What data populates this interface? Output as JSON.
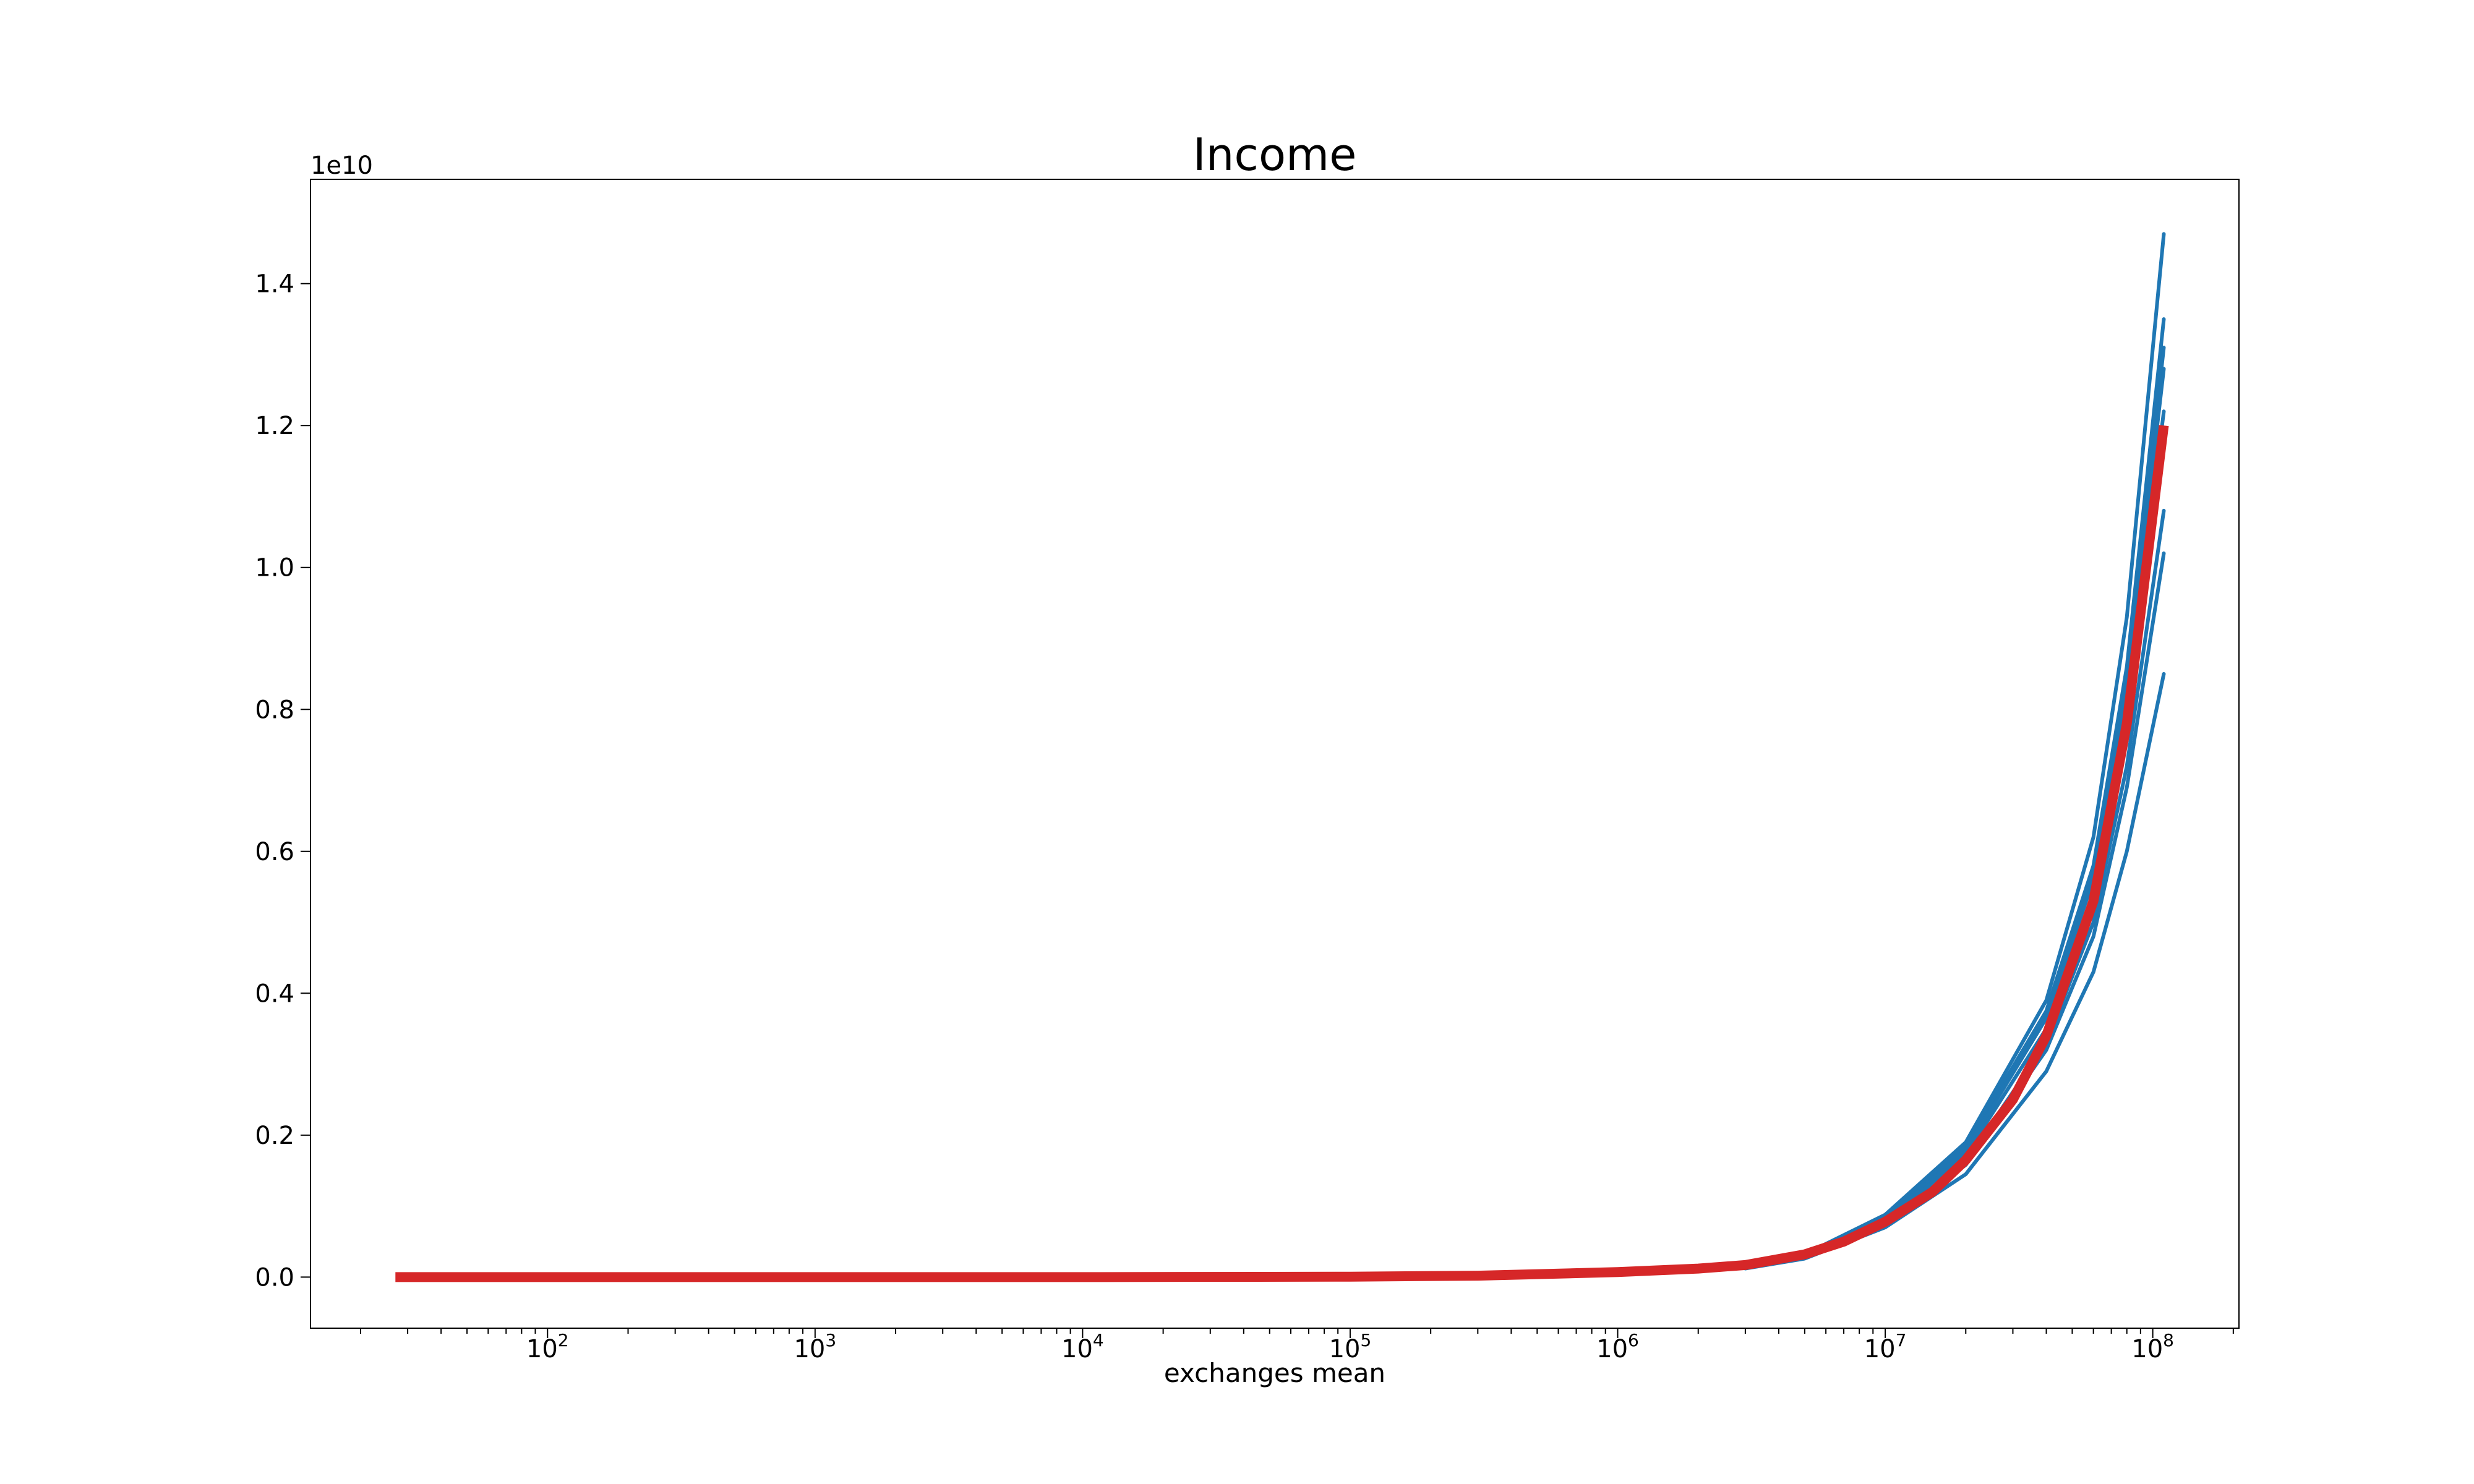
{
  "chart_data": {
    "type": "line",
    "title": "Income",
    "xlabel": "exchanges mean",
    "ylabel": "",
    "x_scale": "log",
    "y_offset_label": "1e10",
    "xlim": [
      13,
      210000000
    ],
    "ylim": [
      -0.072,
      1.547
    ],
    "x_ticks": [
      {
        "value": 100,
        "base": "10",
        "exp": "2"
      },
      {
        "value": 1000,
        "base": "10",
        "exp": "3"
      },
      {
        "value": 10000,
        "base": "10",
        "exp": "4"
      },
      {
        "value": 100000,
        "base": "10",
        "exp": "5"
      },
      {
        "value": 1000000,
        "base": "10",
        "exp": "6"
      },
      {
        "value": 10000000,
        "base": "10",
        "exp": "7"
      },
      {
        "value": 100000000,
        "base": "10",
        "exp": "8"
      }
    ],
    "y_ticks": [
      {
        "value": 0.0,
        "label": "0.0"
      },
      {
        "value": 0.2,
        "label": "0.2"
      },
      {
        "value": 0.4,
        "label": "0.4"
      },
      {
        "value": 0.6,
        "label": "0.6"
      },
      {
        "value": 0.8,
        "label": "0.8"
      },
      {
        "value": 1.0,
        "label": "1.0"
      },
      {
        "value": 1.2,
        "label": "1.2"
      },
      {
        "value": 1.4,
        "label": "1.4"
      }
    ],
    "grid": false,
    "legend": "none",
    "colors": {
      "runs": "#1f77b4",
      "mean": "#d62728"
    },
    "series": [
      {
        "role": "run",
        "x": [
          3000000,
          5000000,
          10000000,
          20000000,
          40000000,
          60000000,
          80000000,
          110000000
        ],
        "y": [
          0.015,
          0.032,
          0.088,
          0.19,
          0.39,
          0.62,
          0.93,
          1.47
        ]
      },
      {
        "role": "run",
        "x": [
          3000000,
          5000000,
          10000000,
          20000000,
          40000000,
          60000000,
          80000000,
          110000000
        ],
        "y": [
          0.014,
          0.031,
          0.084,
          0.185,
          0.375,
          0.58,
          0.86,
          1.35
        ]
      },
      {
        "role": "run",
        "x": [
          3000000,
          5000000,
          10000000,
          20000000,
          40000000,
          60000000,
          80000000,
          110000000
        ],
        "y": [
          0.014,
          0.03,
          0.082,
          0.18,
          0.37,
          0.57,
          0.84,
          1.31
        ]
      },
      {
        "role": "run",
        "x": [
          3000000,
          5000000,
          10000000,
          20000000,
          40000000,
          60000000,
          80000000,
          110000000
        ],
        "y": [
          0.014,
          0.03,
          0.081,
          0.178,
          0.365,
          0.56,
          0.83,
          1.28
        ]
      },
      {
        "role": "run",
        "x": [
          3000000,
          5000000,
          10000000,
          20000000,
          40000000,
          60000000,
          80000000,
          110000000
        ],
        "y": [
          0.013,
          0.029,
          0.079,
          0.172,
          0.35,
          0.54,
          0.8,
          1.22
        ]
      },
      {
        "role": "run",
        "x": [
          3000000,
          5000000,
          10000000,
          20000000,
          40000000,
          60000000,
          80000000,
          110000000
        ],
        "y": [
          0.013,
          0.028,
          0.076,
          0.163,
          0.33,
          0.5,
          0.72,
          1.08
        ]
      },
      {
        "role": "run",
        "x": [
          3000000,
          5000000,
          10000000,
          20000000,
          40000000,
          60000000,
          80000000,
          110000000
        ],
        "y": [
          0.013,
          0.028,
          0.075,
          0.158,
          0.32,
          0.48,
          0.69,
          1.02
        ]
      },
      {
        "role": "run",
        "x": [
          3000000,
          5000000,
          10000000,
          20000000,
          40000000,
          60000000,
          80000000,
          110000000
        ],
        "y": [
          0.012,
          0.026,
          0.07,
          0.145,
          0.29,
          0.43,
          0.6,
          0.85
        ]
      },
      {
        "role": "mean",
        "x": [
          27,
          100,
          1000,
          10000,
          100000,
          300000,
          1000000,
          2000000,
          3000000,
          5000000,
          7000000,
          10000000,
          15000000,
          20000000,
          30000000,
          40000000,
          60000000,
          80000000,
          110000000
        ],
        "y": [
          0.0,
          0.0,
          0.0,
          0.0,
          0.0006,
          0.002,
          0.007,
          0.012,
          0.017,
          0.032,
          0.05,
          0.078,
          0.12,
          0.165,
          0.25,
          0.34,
          0.53,
          0.78,
          1.2
        ]
      }
    ]
  }
}
